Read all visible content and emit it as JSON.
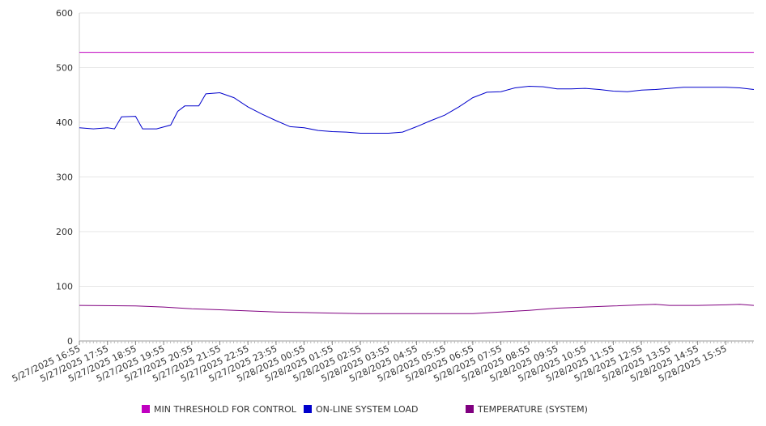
{
  "chart_data": {
    "type": "line",
    "title": "",
    "xlabel": "",
    "ylabel": "",
    "ylim": [
      0,
      600
    ],
    "yticks": [
      0,
      100,
      200,
      300,
      400,
      500,
      600
    ],
    "grid": true,
    "legend_position": "bottom",
    "x_tick_labels": [
      "5/27/2025 16:55",
      "5/27/2025 17:55",
      "5/27/2025 18:55",
      "5/27/2025 19:55",
      "5/27/2025 20:55",
      "5/27/2025 21:55",
      "5/27/2025 22:55",
      "5/27/2025 23:55",
      "5/28/2025 00:55",
      "5/28/2025 01:55",
      "5/28/2025 02:55",
      "5/28/2025 03:55",
      "5/28/2025 04:55",
      "5/28/2025 05:55",
      "5/28/2025 06:55",
      "5/28/2025 07:55",
      "5/28/2025 08:55",
      "5/28/2025 09:55",
      "5/28/2025 10:55",
      "5/28/2025 11:55",
      "5/28/2025 12:55",
      "5/28/2025 13:55",
      "5/28/2025 14:55",
      "5/28/2025 15:55"
    ],
    "x_range": [
      "5/27/2025 16:55",
      "5/28/2025 16:55"
    ],
    "series": [
      {
        "name": "MIN THRESHOLD FOR CONTROL",
        "color": "#c000c0",
        "points": [
          [
            "5/27/2025 16:55",
            528
          ],
          [
            "5/28/2025 16:55",
            528
          ]
        ]
      },
      {
        "name": "ON-LINE SYSTEM LOAD",
        "color": "#0000cc",
        "points": [
          [
            "5/27/2025 16:55",
            390
          ],
          [
            "5/27/2025 17:25",
            388
          ],
          [
            "5/27/2025 17:55",
            390
          ],
          [
            "5/27/2025 18:10",
            388
          ],
          [
            "5/27/2025 18:25",
            410
          ],
          [
            "5/27/2025 18:55",
            411
          ],
          [
            "5/27/2025 19:10",
            388
          ],
          [
            "5/27/2025 19:40",
            388
          ],
          [
            "5/27/2025 20:10",
            395
          ],
          [
            "5/27/2025 20:25",
            420
          ],
          [
            "5/27/2025 20:40",
            430
          ],
          [
            "5/27/2025 21:10",
            430
          ],
          [
            "5/27/2025 21:25",
            452
          ],
          [
            "5/27/2025 21:55",
            454
          ],
          [
            "5/27/2025 22:25",
            445
          ],
          [
            "5/27/2025 22:55",
            428
          ],
          [
            "5/27/2025 23:25",
            415
          ],
          [
            "5/27/2025 23:55",
            403
          ],
          [
            "5/28/2025 00:25",
            392
          ],
          [
            "5/28/2025 00:55",
            390
          ],
          [
            "5/28/2025 01:25",
            385
          ],
          [
            "5/28/2025 01:55",
            383
          ],
          [
            "5/28/2025 02:25",
            382
          ],
          [
            "5/28/2025 02:55",
            380
          ],
          [
            "5/28/2025 03:25",
            380
          ],
          [
            "5/28/2025 03:55",
            380
          ],
          [
            "5/28/2025 04:25",
            382
          ],
          [
            "5/28/2025 04:55",
            392
          ],
          [
            "5/28/2025 05:25",
            403
          ],
          [
            "5/28/2025 05:55",
            413
          ],
          [
            "5/28/2025 06:25",
            428
          ],
          [
            "5/28/2025 06:55",
            445
          ],
          [
            "5/28/2025 07:25",
            455
          ],
          [
            "5/28/2025 07:55",
            456
          ],
          [
            "5/28/2025 08:25",
            463
          ],
          [
            "5/28/2025 08:55",
            466
          ],
          [
            "5/28/2025 09:25",
            465
          ],
          [
            "5/28/2025 09:55",
            461
          ],
          [
            "5/28/2025 10:25",
            461
          ],
          [
            "5/28/2025 10:55",
            462
          ],
          [
            "5/28/2025 11:25",
            460
          ],
          [
            "5/28/2025 11:55",
            457
          ],
          [
            "5/28/2025 12:25",
            456
          ],
          [
            "5/28/2025 12:55",
            459
          ],
          [
            "5/28/2025 13:25",
            460
          ],
          [
            "5/28/2025 13:55",
            462
          ],
          [
            "5/28/2025 14:25",
            464
          ],
          [
            "5/28/2025 14:55",
            464
          ],
          [
            "5/28/2025 15:25",
            464
          ],
          [
            "5/28/2025 15:55",
            464
          ],
          [
            "5/28/2025 16:25",
            463
          ],
          [
            "5/28/2025 16:55",
            460
          ]
        ]
      },
      {
        "name": "TEMPERATURE (SYSTEM)",
        "color": "#800080",
        "points": [
          [
            "5/27/2025 16:55",
            65
          ],
          [
            "5/27/2025 18:55",
            64
          ],
          [
            "5/27/2025 19:55",
            62
          ],
          [
            "5/27/2025 20:55",
            59
          ],
          [
            "5/27/2025 21:55",
            57
          ],
          [
            "5/27/2025 22:55",
            55
          ],
          [
            "5/27/2025 23:55",
            53
          ],
          [
            "5/28/2025 00:55",
            52
          ],
          [
            "5/28/2025 01:55",
            51
          ],
          [
            "5/28/2025 02:55",
            50
          ],
          [
            "5/28/2025 03:55",
            50
          ],
          [
            "5/28/2025 04:55",
            50
          ],
          [
            "5/28/2025 05:55",
            50
          ],
          [
            "5/28/2025 06:55",
            50
          ],
          [
            "5/28/2025 07:55",
            53
          ],
          [
            "5/28/2025 08:55",
            56
          ],
          [
            "5/28/2025 09:55",
            60
          ],
          [
            "5/28/2025 10:55",
            62
          ],
          [
            "5/28/2025 11:55",
            64
          ],
          [
            "5/28/2025 12:55",
            66
          ],
          [
            "5/28/2025 13:25",
            67
          ],
          [
            "5/28/2025 13:55",
            65
          ],
          [
            "5/28/2025 14:55",
            65
          ],
          [
            "5/28/2025 15:55",
            66
          ],
          [
            "5/28/2025 16:25",
            67
          ],
          [
            "5/28/2025 16:55",
            65
          ]
        ]
      }
    ]
  }
}
